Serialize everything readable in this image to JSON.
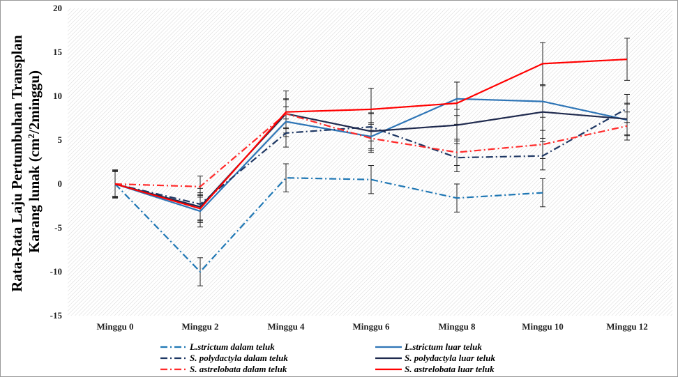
{
  "chart_data": {
    "type": "line",
    "title": "",
    "xlabel": "",
    "ylabel_line1": "Rata-Rata Laju Pertumbuhan Transplan",
    "ylabel_line2_prefix": "Karang lunak (cm",
    "ylabel_sup": "2",
    "ylabel_line2_suffix": "/2minggu)",
    "ylim": [
      -15,
      20
    ],
    "yticks": [
      "-15",
      "-10",
      "-5",
      "0",
      "5",
      "10",
      "15",
      "20"
    ],
    "categories": [
      "Minggu 0",
      "Minggu 2",
      "Minggu 4",
      "Minggu 6",
      "Minggu 8",
      "Minggu 10",
      "Minggu 12"
    ],
    "grid": false,
    "background_pattern": "diagonal hatch",
    "legend_position": "bottom",
    "series": [
      {
        "name": "L.strictum dalam teluk",
        "color": "#1f77b4",
        "dash": "dashdot",
        "values": [
          0,
          -10.0,
          0.7,
          0.5,
          -1.6,
          -1.0,
          null
        ],
        "errors": [
          1.6,
          1.6,
          1.6,
          1.6,
          1.6,
          1.6,
          null
        ]
      },
      {
        "name": "L.strictum luar teluk",
        "color": "#2e75b6",
        "dash": "solid",
        "values": [
          0,
          -3.1,
          7.1,
          5.4,
          9.7,
          9.4,
          7.3
        ],
        "errors": [
          1.5,
          1.8,
          1.7,
          1.6,
          1.9,
          1.8,
          1.8
        ]
      },
      {
        "name": "S. polydactyla dalam teluk",
        "color": "#1f3864",
        "dash": "dashdot",
        "values": [
          0,
          -2.3,
          5.8,
          6.5,
          3.0,
          3.2,
          8.6
        ],
        "errors": [
          1.6,
          1.8,
          1.6,
          1.6,
          1.6,
          1.6,
          1.6
        ]
      },
      {
        "name": "S. polydactyla luar teluk",
        "color": "#1f2a4e",
        "dash": "solid",
        "values": [
          0,
          -2.6,
          8.0,
          6.0,
          6.7,
          8.2,
          7.4
        ],
        "errors": [
          1.5,
          1.6,
          1.7,
          2.0,
          1.8,
          3.0,
          1.8
        ]
      },
      {
        "name": "S. astrelobata dalam teluk",
        "color": "#ff2a2a",
        "dash": "dashdot",
        "values": [
          0,
          -0.3,
          8.0,
          5.2,
          3.6,
          4.5,
          6.6
        ],
        "errors": [
          1.4,
          1.2,
          1.6,
          1.6,
          1.5,
          1.6,
          1.6
        ]
      },
      {
        "name": "S. astrelobata luar teluk",
        "color": "#ff0000",
        "dash": "solid",
        "values": [
          0,
          -2.8,
          8.2,
          8.5,
          9.2,
          13.7,
          14.2
        ],
        "errors": [
          1.5,
          1.6,
          2.4,
          2.4,
          2.4,
          2.4,
          2.4
        ]
      }
    ]
  }
}
